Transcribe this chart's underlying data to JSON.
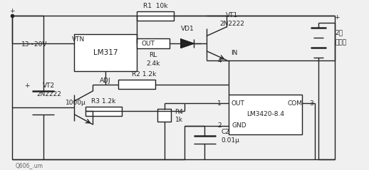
{
  "bg_color": "#f0f0f0",
  "title": "",
  "fig_width": 5.18,
  "fig_height": 2.39,
  "dpi": 100,
  "font_size": 7.5,
  "small_font": 6.5,
  "line_color": "#222222",
  "line_width": 1.0,
  "labels": {
    "lm317": "LM317",
    "lm3420": "LM3420-8.4",
    "vtn": "VTN",
    "vt1": "VT1",
    "vt1_2n": "2N2222",
    "vt2": "VT2",
    "vt2_2n": "2N2222",
    "out_lm317": "OUT",
    "adj": "ADJ",
    "rl": "RL",
    "rl_val": "2.4k",
    "r1": "R1  10k",
    "r2": "R2 1.2k",
    "r3": "R3 1.2k",
    "r4": "R4",
    "r4_val": "1k",
    "vd1": "VD1",
    "c2": "C2",
    "c2_val": "0.01μ",
    "cap1000": "1000μ",
    "in_label": "IN",
    "out_lm3420": "OUT",
    "gnd_lm3420": "GND",
    "com_lm3420": "COM",
    "num1": "1",
    "num2": "2",
    "num3": "3",
    "num4": "4",
    "voltage": "13~20V",
    "plus_top": "+",
    "plus_bot": "+",
    "bat_line1": "2节",
    "bat_line2": "锂电池",
    "watermark": "Q606_.um"
  }
}
